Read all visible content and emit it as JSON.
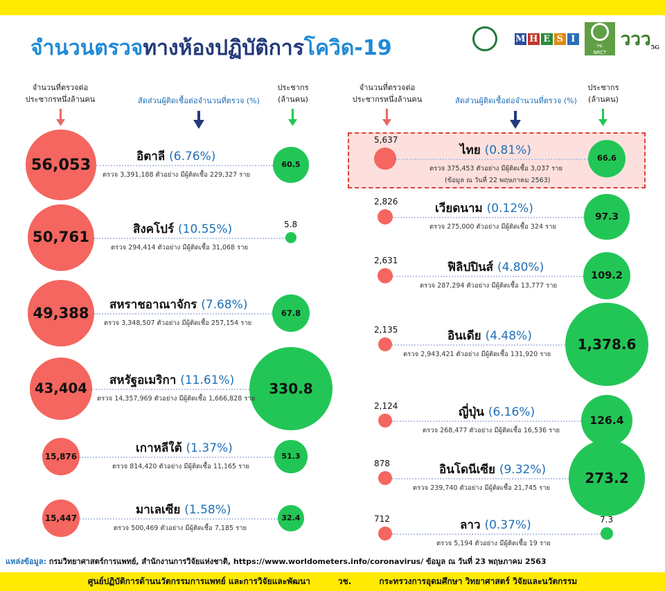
{
  "title": {
    "part1": "จำนวนตรวจ",
    "part2": "ทางห้องปฏิบัติการ",
    "part3": "โควิด-19"
  },
  "headers": {
    "tests_per_million": [
      "จำนวนที่ตรวจต่อ",
      "ประชากรหนึ่งล้านคน"
    ],
    "positive_ratio": "สัดส่วนผู้ติดเชื้อต่อจำนวนที่ตรวจ (%)",
    "population": [
      "ประชากร",
      "(ล้านคน)"
    ]
  },
  "logos": {
    "mhesi": "MHESI",
    "nrct": "NRCT",
    "nrct_thai": "วช.",
    "vv": "ววว",
    "vv_sub": "5G"
  },
  "colors": {
    "tests": "#f4665f",
    "population": "#22c656",
    "accent": "#1f6fb8",
    "highlight": "#fde0dd",
    "bar": "#ffea00"
  },
  "chart_data": {
    "type": "bubble-table",
    "columns": [
      "tests_per_million",
      "country",
      "positive_ratio_pct",
      "tests",
      "infected",
      "population_million"
    ],
    "units": {
      "tests_per_million": "per 1,000,000 population",
      "positive_ratio_pct": "%",
      "population_million": "million"
    },
    "highlight_country": "ไทย",
    "highlight_note": "(ข้อมูล ณ วันที่ 22 พฤษภาคม 2563)",
    "left": [
      {
        "country": "อิตาลี",
        "tests_per_million": "56,053",
        "tpm": 56053,
        "pct": "(6.76%)",
        "detail": "ตรวจ 3,391,188 ตัวอย่าง มีผู้ติดเชื้อ 229,327 ราย",
        "population": "60.5",
        "pop": 60.5
      },
      {
        "country": "สิงคโปร์",
        "tests_per_million": "50,761",
        "tpm": 50761,
        "pct": "(10.55%)",
        "detail": "ตรวจ 294,414 ตัวอย่าง มีผู้ติดเชื้อ 31,068 ราย",
        "population": "5.8",
        "pop": 5.8
      },
      {
        "country": "สหราชอาณาจักร",
        "tests_per_million": "49,388",
        "tpm": 49388,
        "pct": "(7.68%)",
        "detail": "ตรวจ 3,348,507 ตัวอย่าง มีผู้ติดเชื้อ 257,154 ราย",
        "population": "67.8",
        "pop": 67.8
      },
      {
        "country": "สหรัฐอเมริกา",
        "tests_per_million": "43,404",
        "tpm": 43404,
        "pct": "(11.61%)",
        "detail": "ตรวจ 14,357,969 ตัวอย่าง มีผู้ติดเชื้อ 1,666,828 ราย",
        "population": "330.8",
        "pop": 330.8
      },
      {
        "country": "เกาหลีใต้",
        "tests_per_million": "15,876",
        "tpm": 15876,
        "pct": "(1.37%)",
        "detail": "ตรวจ 814,420 ตัวอย่าง มีผู้ติดเชื้อ 11,165 ราย",
        "population": "51.3",
        "pop": 51.3
      },
      {
        "country": "มาเลเซีย",
        "tests_per_million": "15,447",
        "tpm": 15447,
        "pct": "(1.58%)",
        "detail": "ตรวจ 500,469 ตัวอย่าง มีผู้ติดเชื้อ 7,185 ราย",
        "population": "32.4",
        "pop": 32.4
      }
    ],
    "right": [
      {
        "country": "ไทย",
        "tests_per_million": "5,637",
        "tpm": 5637,
        "pct": "(0.81%)",
        "detail": "ตรวจ 375,453 ตัวอย่าง มีผู้ติดเชื้อ 3,037 ราย",
        "population": "66.6",
        "pop": 66.6
      },
      {
        "country": "เวียดนาม",
        "tests_per_million": "2,826",
        "tpm": 2826,
        "pct": "(0.12%)",
        "detail": "ตรวจ 275,000 ตัวอย่าง มีผู้ติดเชื้อ 324 ราย",
        "population": "97.3",
        "pop": 97.3
      },
      {
        "country": "ฟิลิปปินส์",
        "tests_per_million": "2,631",
        "tpm": 2631,
        "pct": "(4.80%)",
        "detail": "ตรวจ 287,294 ตัวอย่าง มีผู้ติดเชื้อ 13,777 ราย",
        "population": "109.2",
        "pop": 109.2
      },
      {
        "country": "อินเดีย",
        "tests_per_million": "2,135",
        "tpm": 2135,
        "pct": "(4.48%)",
        "detail": "ตรวจ 2,943,421 ตัวอย่าง มีผู้ติดเชื้อ 131,920 ราย",
        "population": "1,378.6",
        "pop": 1378.6
      },
      {
        "country": "ญี่ปุ่น",
        "tests_per_million": "2,124",
        "tpm": 2124,
        "pct": "(6.16%)",
        "detail": "ตรวจ 268,477 ตัวอย่าง มีผู้ติดเชื้อ 16,536 ราย",
        "population": "126.4",
        "pop": 126.4
      },
      {
        "country": "อินโดนีเซีย",
        "tests_per_million": "878",
        "tpm": 878,
        "pct": "(9.32%)",
        "detail": "ตรวจ 239,740 ตัวอย่าง มีผู้ติดเชื้อ 21,745 ราย",
        "population": "273.2",
        "pop": 273.2
      },
      {
        "country": "ลาว",
        "tests_per_million": "712",
        "tpm": 712,
        "pct": "(0.37%)",
        "detail": "ตรวจ 5,194 ตัวอย่าง มีผู้ติดเชื้อ 19 ราย",
        "population": "7.3",
        "pop": 7.3
      }
    ]
  },
  "source": {
    "label": "แหล่งข้อมูล:",
    "text": "กรมวิทยาศาสตร์การแพทย์, สำนักงานการวิจัยแห่งชาติ, https://www.worldometers.info/coronavirus/ ข้อมูล ณ วันที่ 23 พฤษภาคม 2563"
  },
  "footer": {
    "left": "ศูนย์ปฏิบัติการด้านนวัตกรรมการแพทย์ และการวิจัยและพัฒนา",
    "mid": "วช.",
    "right": "กระทรวงการอุดมศึกษา วิทยาศาสตร์ วิจัยและนวัตกรรม"
  }
}
